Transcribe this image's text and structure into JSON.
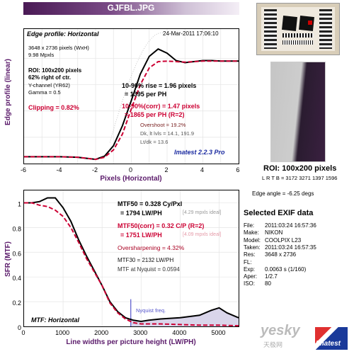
{
  "header": {
    "filename": "GJFBL.JPG"
  },
  "edge_panel": {
    "title": "Edge profile: Horizontal",
    "timestamp": "24-Mar-2011 17:06:10",
    "size_line": "3648 x 2736 pixels (WxH)",
    "mpxls_line": "9.98 Mpxls",
    "roi_line": "ROI: 100x200 pixels",
    "pos_line": "62% right of ctr.",
    "channel_line": "Y-channel (YR62)",
    "gamma_line": "Gamma = 0.5",
    "clipping_line": "Clipping =  0.82%",
    "rise_line1": "10-90% rise = 1.96 pixels",
    "rise_line2": "= 1395 per PH",
    "corr_line1": "10-90%(corr) = 1.47 pixels",
    "corr_line2": "= 1865 per PH  (R=2)",
    "overshoot_line": "Overshoot = 19.2%",
    "levels_line": "Dk, lt lvls = 14.1, 191.9",
    "ltdk_line": "Lt/dk = 13.6",
    "version_label": "Imatest 2.2.3 Pro"
  },
  "mtf_panel": {
    "mtf50_line1": "MTF50 = 0.328 Cy/Pxl",
    "mtf50_line2": "= 1794 LW/PH",
    "mtf50_ideal": "[4.29 mpxls ideal]",
    "corr_line1": "MTF50(corr) = 0.32 C/P  (R=2)",
    "corr_line2": "= 1751 LW/PH",
    "corr_ideal": "[4.09 mpxls ideal]",
    "oversharpening_line": "Oversharpening = 4.32%",
    "mtf30_line": "MTF30 = 2132 LW/PH",
    "nyquist_mtf_line": "MTF at Nyquist = 0.0594",
    "nyquist_label": "Nyquist freq.",
    "panel_label": "MTF: Horizontal"
  },
  "roi_caption": "ROI: 100x200 pixels",
  "roi_coords": "L R T B = 3172 3271  1397 1596",
  "edge_angle": "Edge angle = -6.25 degs",
  "exif": {
    "title": "Selected EXIF data",
    "rows": [
      {
        "key": "File:",
        "value": "2011:03:24 16:57:36"
      },
      {
        "key": "Make:",
        "value": "NIKON"
      },
      {
        "key": "Model:",
        "value": "COOLPIX L23"
      },
      {
        "key": "Taken:",
        "value": "2011:03:24 16:57:35"
      },
      {
        "key": "Res:",
        "value": "3648 x 2736"
      },
      {
        "key": "FL:",
        "value": ""
      },
      {
        "key": "Exp:",
        "value": "0.0063 s   (1/160)"
      },
      {
        "key": "Aper:",
        "value": "1/2.7"
      },
      {
        "key": "ISO:",
        "value": "80"
      }
    ]
  },
  "watermark": {
    "site": "yesky",
    "site_cn": "天极网",
    "logo": "Imatest"
  },
  "colors": {
    "black_curve": "#000000",
    "red_curve": "#cc0033",
    "axis_label": "#5a1a6a",
    "nyquist": "#5555cc",
    "fill": "#d9d5ea"
  },
  "chart_data": [
    {
      "type": "line",
      "title": "Edge profile: Horizontal",
      "xlabel": "Pixels (Horizontal)",
      "ylabel": "Edge profile (linear)",
      "xlim": [
        -6,
        6
      ],
      "ylim": [
        0,
        1.28
      ],
      "xticks": [
        "-6",
        "-4",
        "-2",
        "0",
        "2",
        "4",
        "6"
      ],
      "grid": true,
      "series": [
        {
          "color": "#000000",
          "x": [
            -6,
            -5,
            -4,
            -3,
            -2.5,
            -2,
            -1.5,
            -1,
            -0.5,
            0,
            0.5,
            1,
            1.5,
            2,
            2.5,
            3,
            3.5,
            4,
            4.5,
            5,
            5.5,
            6
          ],
          "y": [
            0.065,
            0.065,
            0.065,
            0.06,
            0.05,
            0.04,
            0.07,
            0.17,
            0.36,
            0.6,
            0.85,
            1.02,
            1.09,
            1.05,
            0.98,
            0.96,
            0.97,
            0.98,
            0.98,
            0.975,
            0.975,
            0.975
          ]
        },
        {
          "color": "#cc0033",
          "x": [
            -6,
            -5,
            -4,
            -3,
            -2.5,
            -2,
            -1.5,
            -1,
            -0.5,
            0,
            0.5,
            1,
            1.5,
            2,
            2.5,
            3,
            3.5,
            4,
            4.5,
            5,
            5.5,
            6
          ],
          "y": [
            0.065,
            0.065,
            0.065,
            0.06,
            0.05,
            0.04,
            0.06,
            0.13,
            0.28,
            0.52,
            0.75,
            0.91,
            0.97,
            0.975,
            0.97,
            0.965,
            0.97,
            0.975,
            0.975,
            0.975,
            0.975,
            0.975
          ]
        }
      ]
    },
    {
      "type": "line",
      "title": "MTF: Horizontal",
      "xlabel": "Line widths per picture height (LW/PH)",
      "ylabel": "SFR (MTF)",
      "xlim": [
        0,
        5500
      ],
      "ylim": [
        0,
        1.1
      ],
      "xticks": [
        "0",
        "1000",
        "2000",
        "3000",
        "4000",
        "5000"
      ],
      "yticks": [
        "0",
        "0.2",
        "0.4",
        "0.6",
        "0.8",
        "1"
      ],
      "grid": true,
      "nyquist_x": 2736,
      "series": [
        {
          "color": "#000000",
          "x": [
            0,
            200,
            400,
            600,
            800,
            1000,
            1200,
            1400,
            1600,
            1800,
            2000,
            2200,
            2400,
            2600,
            2800,
            3000,
            3200,
            3500,
            4000,
            4500,
            4800,
            5000,
            5200,
            5500
          ],
          "y": [
            1.0,
            1.0,
            1.01,
            1.04,
            1.04,
            0.96,
            0.85,
            0.7,
            0.57,
            0.45,
            0.33,
            0.2,
            0.12,
            0.07,
            0.05,
            0.04,
            0.05,
            0.06,
            0.07,
            0.09,
            0.13,
            0.15,
            0.11,
            0.07
          ]
        },
        {
          "color": "#cc0033",
          "x": [
            0,
            200,
            400,
            600,
            800,
            1000,
            1200,
            1400,
            1600,
            1800,
            2000,
            2200,
            2400,
            2600,
            2800,
            3000,
            3500,
            4000,
            4500,
            5000,
            5500
          ],
          "y": [
            1.0,
            1.0,
            0.98,
            0.97,
            0.94,
            0.89,
            0.8,
            0.68,
            0.55,
            0.44,
            0.33,
            0.19,
            0.11,
            0.06,
            0.03,
            0.02,
            0.02,
            0.015,
            0.01,
            0.01,
            0.005
          ]
        }
      ]
    }
  ]
}
